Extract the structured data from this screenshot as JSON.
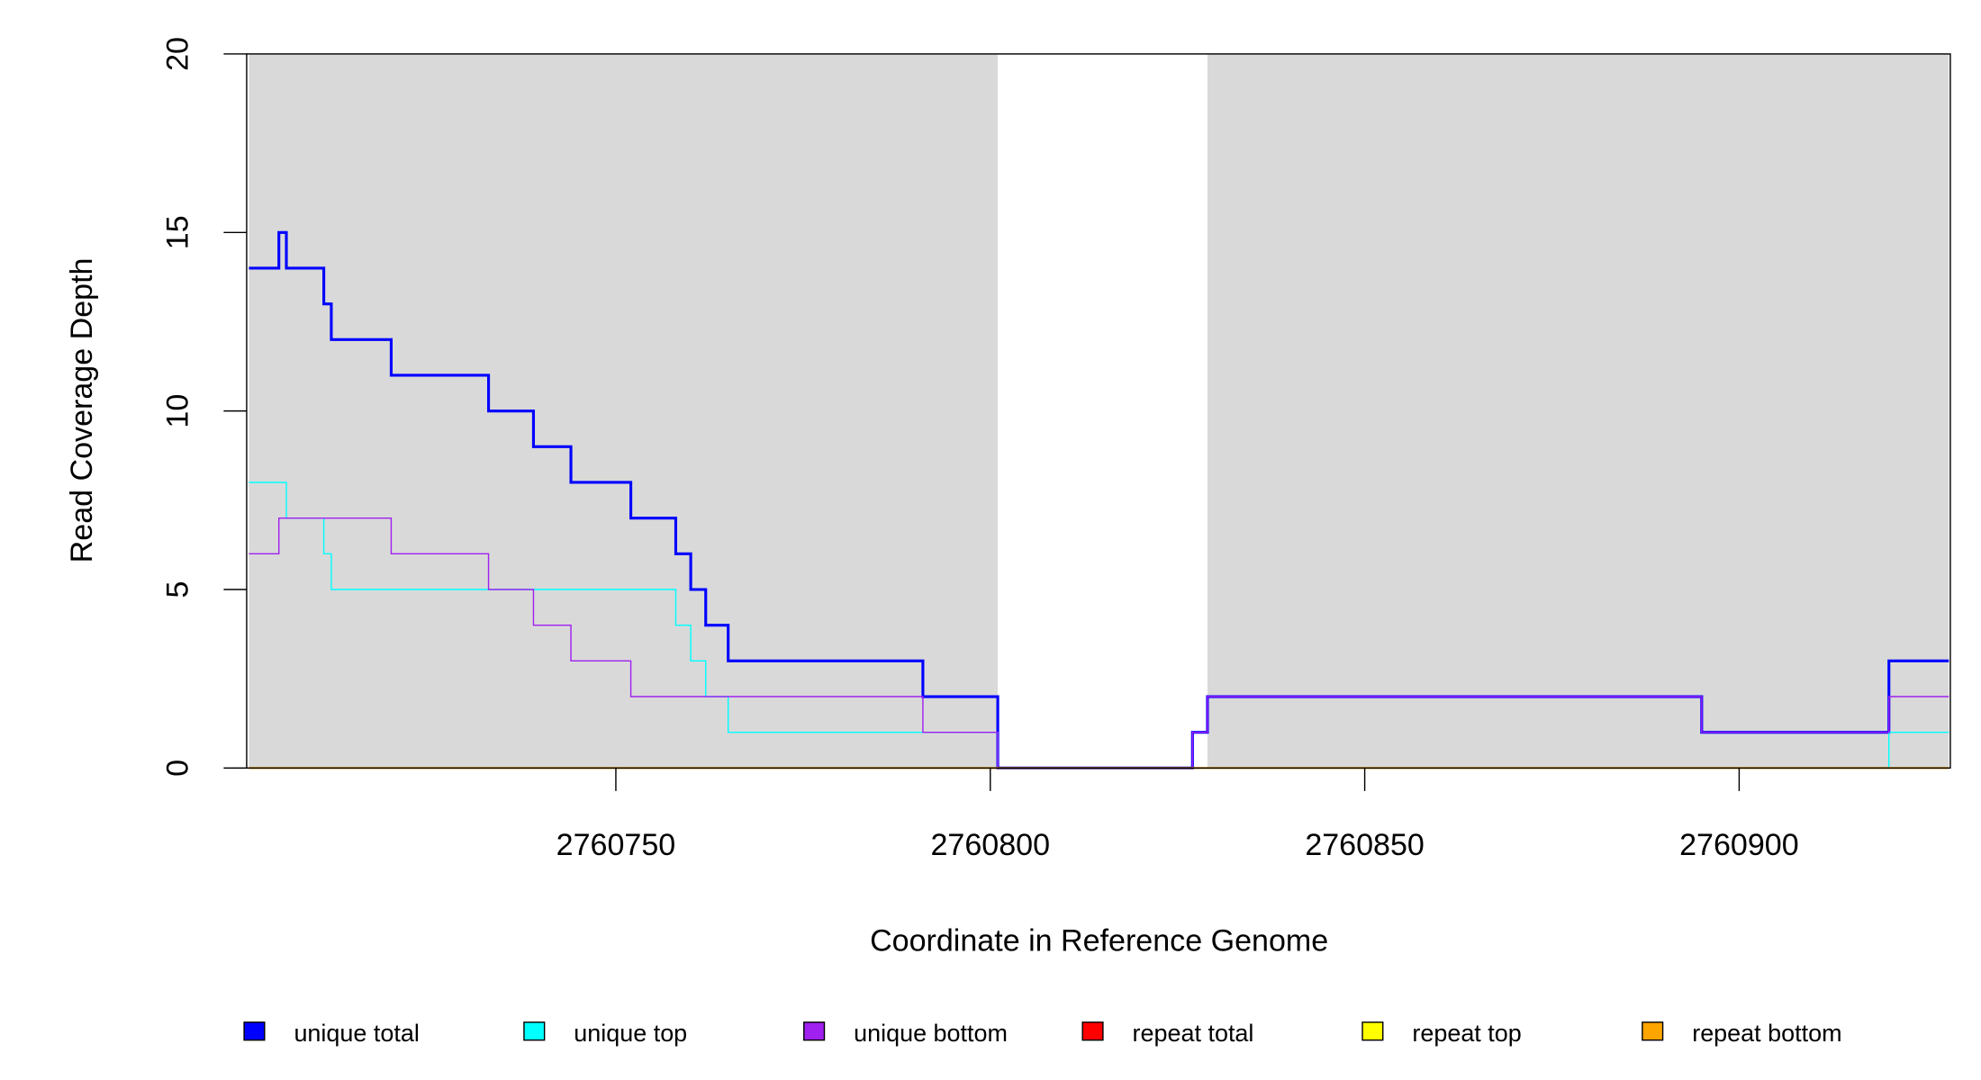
{
  "chart_data": {
    "type": "line",
    "step": true,
    "title": "",
    "xlabel": "Coordinate in Reference Genome",
    "ylabel": "Read Coverage Depth",
    "xlim": [
      2760700.7,
      2760928.2
    ],
    "ylim": [
      0,
      20
    ],
    "xticks": [
      2760750,
      2760800,
      2760850,
      2760900
    ],
    "xtick_labels": [
      "2760750",
      "2760800",
      "2760850",
      "2760900"
    ],
    "yticks": [
      0,
      5,
      10,
      15,
      20
    ],
    "ytick_labels": [
      "0",
      "5",
      "10",
      "15",
      "20"
    ],
    "shaded_regions": [
      {
        "x": [
          2760701,
          2760801
        ],
        "color": "#d9d9d9"
      },
      {
        "x": [
          2760829,
          2760928
        ],
        "color": "#d9d9d9"
      }
    ],
    "x_end": 2760928,
    "series": [
      {
        "name": "unique total",
        "color": "#0000ff",
        "width": 2.2,
        "steps": [
          [
            2760701,
            14
          ],
          [
            2760705,
            15
          ],
          [
            2760706,
            14
          ],
          [
            2760711,
            13
          ],
          [
            2760712,
            12
          ],
          [
            2760720,
            11
          ],
          [
            2760733,
            10
          ],
          [
            2760739,
            9
          ],
          [
            2760744,
            8
          ],
          [
            2760752,
            7
          ],
          [
            2760758,
            6
          ],
          [
            2760760,
            5
          ],
          [
            2760762,
            4
          ],
          [
            2760765,
            3
          ],
          [
            2760791,
            2
          ],
          [
            2760801,
            0
          ],
          [
            2760827,
            1
          ],
          [
            2760829,
            2
          ],
          [
            2760895,
            1
          ],
          [
            2760920,
            3
          ]
        ]
      },
      {
        "name": "unique top",
        "color": "#00ffff",
        "width": 1,
        "steps": [
          [
            2760701,
            8
          ],
          [
            2760706,
            7
          ],
          [
            2760711,
            6
          ],
          [
            2760712,
            5
          ],
          [
            2760758,
            4
          ],
          [
            2760760,
            3
          ],
          [
            2760762,
            2
          ],
          [
            2760765,
            1
          ],
          [
            2760801,
            0
          ],
          [
            2760920,
            1
          ]
        ]
      },
      {
        "name": "unique bottom",
        "color": "#a020f0",
        "width": 1,
        "steps": [
          [
            2760701,
            6
          ],
          [
            2760705,
            7
          ],
          [
            2760720,
            6
          ],
          [
            2760733,
            5
          ],
          [
            2760739,
            4
          ],
          [
            2760744,
            3
          ],
          [
            2760752,
            2
          ],
          [
            2760791,
            1
          ],
          [
            2760801,
            0
          ],
          [
            2760827,
            1
          ],
          [
            2760829,
            2
          ],
          [
            2760895,
            1
          ],
          [
            2760920,
            2
          ]
        ]
      },
      {
        "name": "repeat total",
        "color": "#ff0000",
        "width": 1,
        "steps": [
          [
            2760701,
            0
          ]
        ]
      },
      {
        "name": "repeat top",
        "color": "#ffff00",
        "width": 1,
        "steps": [
          [
            2760701,
            0
          ]
        ]
      },
      {
        "name": "repeat bottom",
        "color": "#ffa500",
        "width": 1.5,
        "steps": [
          [
            2760701,
            0
          ]
        ]
      }
    ],
    "legend_position": "bottom"
  }
}
